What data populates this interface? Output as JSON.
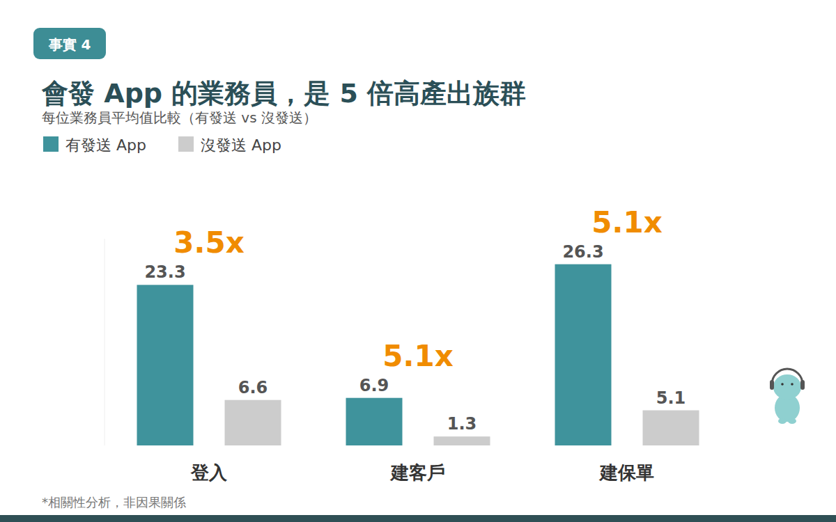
{
  "chart_data": {
    "type": "bar",
    "badge": "事實 4",
    "title": "會發 App 的業務員，是 5 倍高產出族群",
    "subtitle": "每位業務員平均值比較（有發送 vs 沒發送）",
    "footnote": "*相關性分析，非因果關係",
    "categories": [
      "登入",
      "建客戶",
      "建保單"
    ],
    "series": [
      {
        "name": "有發送 App",
        "color": "#3f939c",
        "values": [
          23.3,
          6.9,
          26.3
        ]
      },
      {
        "name": "沒發送 App",
        "color": "#cccccc",
        "values": [
          6.6,
          1.3,
          5.1
        ]
      }
    ],
    "annotations": [
      "3.5x",
      "5.1x",
      "5.1x"
    ],
    "ylim": [
      0,
      30
    ],
    "grid": false,
    "legend": "top-left",
    "data_labels": true,
    "tick_labels": "x"
  }
}
